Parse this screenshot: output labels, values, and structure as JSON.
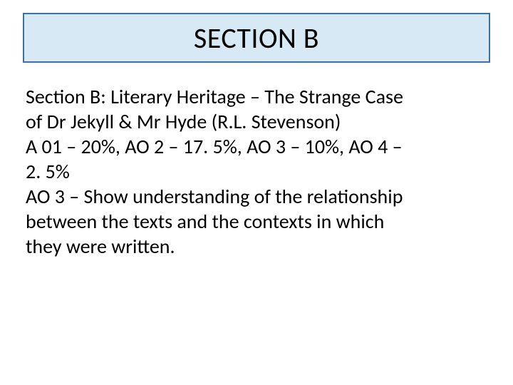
{
  "slide": {
    "title": "SECTION B",
    "title_box": {
      "background_color": "#d6e9f4",
      "border_color": "#39739f"
    },
    "body": {
      "line1": "Section B: Literary Heritage – The Strange Case",
      "line2": "of Dr Jekyll & Mr Hyde (R.L. Stevenson)",
      "line3": "A 01 – 20%, AO 2 – 17. 5%, AO 3 – 10%, AO 4 –",
      "line4": "2. 5%",
      "line5": "AO 3 – Show understanding of the relationship",
      "line6": "between the texts and the contexts in which",
      "line7": "they were written."
    },
    "colors": {
      "background": "#ffffff",
      "text": "#000000"
    },
    "typography": {
      "title_fontsize": 40,
      "body_fontsize": 28,
      "font_family": "Calibri"
    }
  }
}
